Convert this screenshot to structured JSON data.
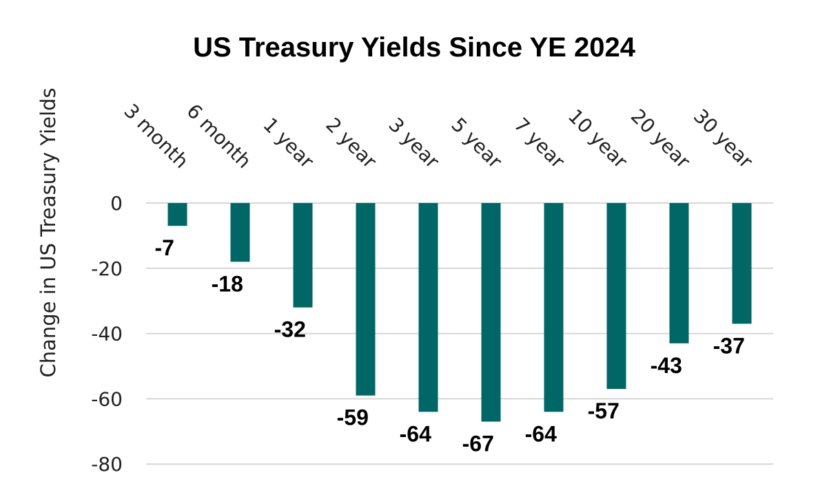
{
  "chart_data": {
    "type": "bar",
    "title": "US Treasury Yields Since YE 2024",
    "xlabel": "",
    "ylabel": "Change in US Treasury Yields",
    "categories": [
      "3 month",
      "6 month",
      "1 year",
      "2 year",
      "3 year",
      "5 year",
      "7 year",
      "10 year",
      "20 year",
      "30 year"
    ],
    "values": [
      -7,
      -18,
      -32,
      -59,
      -64,
      -67,
      -64,
      -57,
      -43,
      -37
    ],
    "value_labels": [
      "-7",
      "-18",
      "-32",
      "-59",
      "-64",
      "-67",
      "-64",
      "-57",
      "-43",
      "-37"
    ],
    "yticks": [
      0,
      -20,
      -40,
      -60,
      -80
    ],
    "ytick_labels": [
      "0",
      "-20",
      "-40",
      "-60",
      "-80"
    ],
    "ylim": [
      -80,
      0
    ],
    "grid": true,
    "legend": "none",
    "colors": {
      "bar": "#006666",
      "grid": "#d6d6d6"
    }
  }
}
